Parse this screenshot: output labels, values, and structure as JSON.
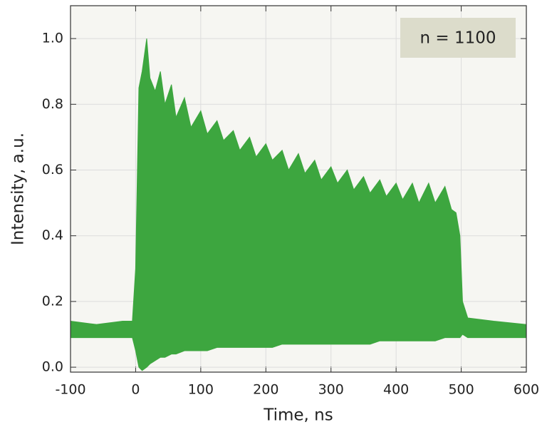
{
  "chart_data": {
    "type": "band",
    "x_label": "Time, ns",
    "y_label": "Intensity, a.u.",
    "annotation": "n = 1100",
    "color": "#3da63f",
    "background": "#f6f6f2",
    "grid": true,
    "xlim": [
      -100,
      600
    ],
    "ylim": [
      -0.015,
      1.1
    ],
    "xticks": [
      -100,
      0,
      100,
      200,
      300,
      400,
      500,
      600
    ],
    "yticks": [
      {
        "value": 0,
        "label": "0.0"
      },
      0.2,
      0.4,
      0.6,
      0.8,
      {
        "value": 1,
        "label": "1.0"
      }
    ],
    "x": [
      -100,
      -60,
      -20,
      -5,
      0,
      5,
      10,
      17,
      22,
      30,
      38,
      45,
      55,
      62,
      75,
      85,
      100,
      110,
      125,
      135,
      150,
      160,
      175,
      185,
      200,
      210,
      225,
      235,
      250,
      260,
      275,
      285,
      300,
      310,
      325,
      335,
      350,
      360,
      375,
      385,
      400,
      410,
      425,
      435,
      450,
      460,
      475,
      485,
      492,
      498,
      502,
      510,
      550,
      600
    ],
    "upper": [
      0.14,
      0.13,
      0.14,
      0.14,
      0.3,
      0.85,
      0.9,
      1.0,
      0.88,
      0.84,
      0.9,
      0.8,
      0.86,
      0.76,
      0.82,
      0.73,
      0.78,
      0.71,
      0.75,
      0.69,
      0.72,
      0.66,
      0.7,
      0.64,
      0.68,
      0.63,
      0.66,
      0.6,
      0.65,
      0.59,
      0.63,
      0.57,
      0.61,
      0.56,
      0.6,
      0.54,
      0.58,
      0.53,
      0.57,
      0.52,
      0.56,
      0.51,
      0.56,
      0.5,
      0.56,
      0.5,
      0.55,
      0.48,
      0.47,
      0.4,
      0.2,
      0.15,
      0.14,
      0.13
    ],
    "lower": [
      0.09,
      0.09,
      0.09,
      0.09,
      0.05,
      0.0,
      -0.01,
      0.0,
      0.01,
      0.02,
      0.03,
      0.03,
      0.04,
      0.04,
      0.05,
      0.05,
      0.05,
      0.05,
      0.06,
      0.06,
      0.06,
      0.06,
      0.06,
      0.06,
      0.06,
      0.06,
      0.07,
      0.07,
      0.07,
      0.07,
      0.07,
      0.07,
      0.07,
      0.07,
      0.07,
      0.07,
      0.07,
      0.07,
      0.08,
      0.08,
      0.08,
      0.08,
      0.08,
      0.08,
      0.08,
      0.08,
      0.09,
      0.09,
      0.09,
      0.09,
      0.1,
      0.09,
      0.09,
      0.09
    ]
  }
}
